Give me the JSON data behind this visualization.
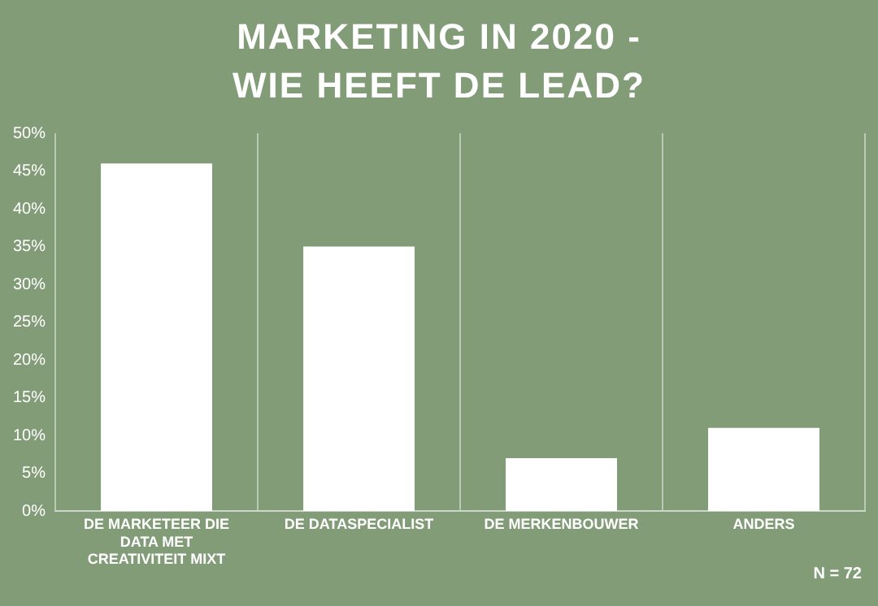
{
  "chart_data": {
    "type": "bar",
    "title": "MARKETING IN 2020 - WIE HEEFT DE LEAD?",
    "categories": [
      "DE MARKETEER DIE DATA MET CREATIVITEIT MIXT",
      "DE DATASPECIALIST",
      "DE MERKENBOUWER",
      "ANDERS"
    ],
    "values": [
      46,
      35,
      7,
      11
    ],
    "color": "#ffffff",
    "ylim": [
      0,
      50
    ],
    "yticks": [
      {
        "value": 0,
        "label": "0%"
      },
      {
        "value": 5,
        "label": "5%"
      },
      {
        "value": 10,
        "label": "10%"
      },
      {
        "value": 15,
        "label": "15%"
      },
      {
        "value": 20,
        "label": "20%"
      },
      {
        "value": 25,
        "label": "25%"
      },
      {
        "value": 30,
        "label": "30%"
      },
      {
        "value": 35,
        "label": "35%"
      },
      {
        "value": 40,
        "label": "40%"
      },
      {
        "value": 45,
        "label": "45%"
      },
      {
        "value": 50,
        "label": "50%"
      }
    ],
    "grid": "x",
    "legend": false,
    "annotations": [
      "N = 72"
    ]
  }
}
